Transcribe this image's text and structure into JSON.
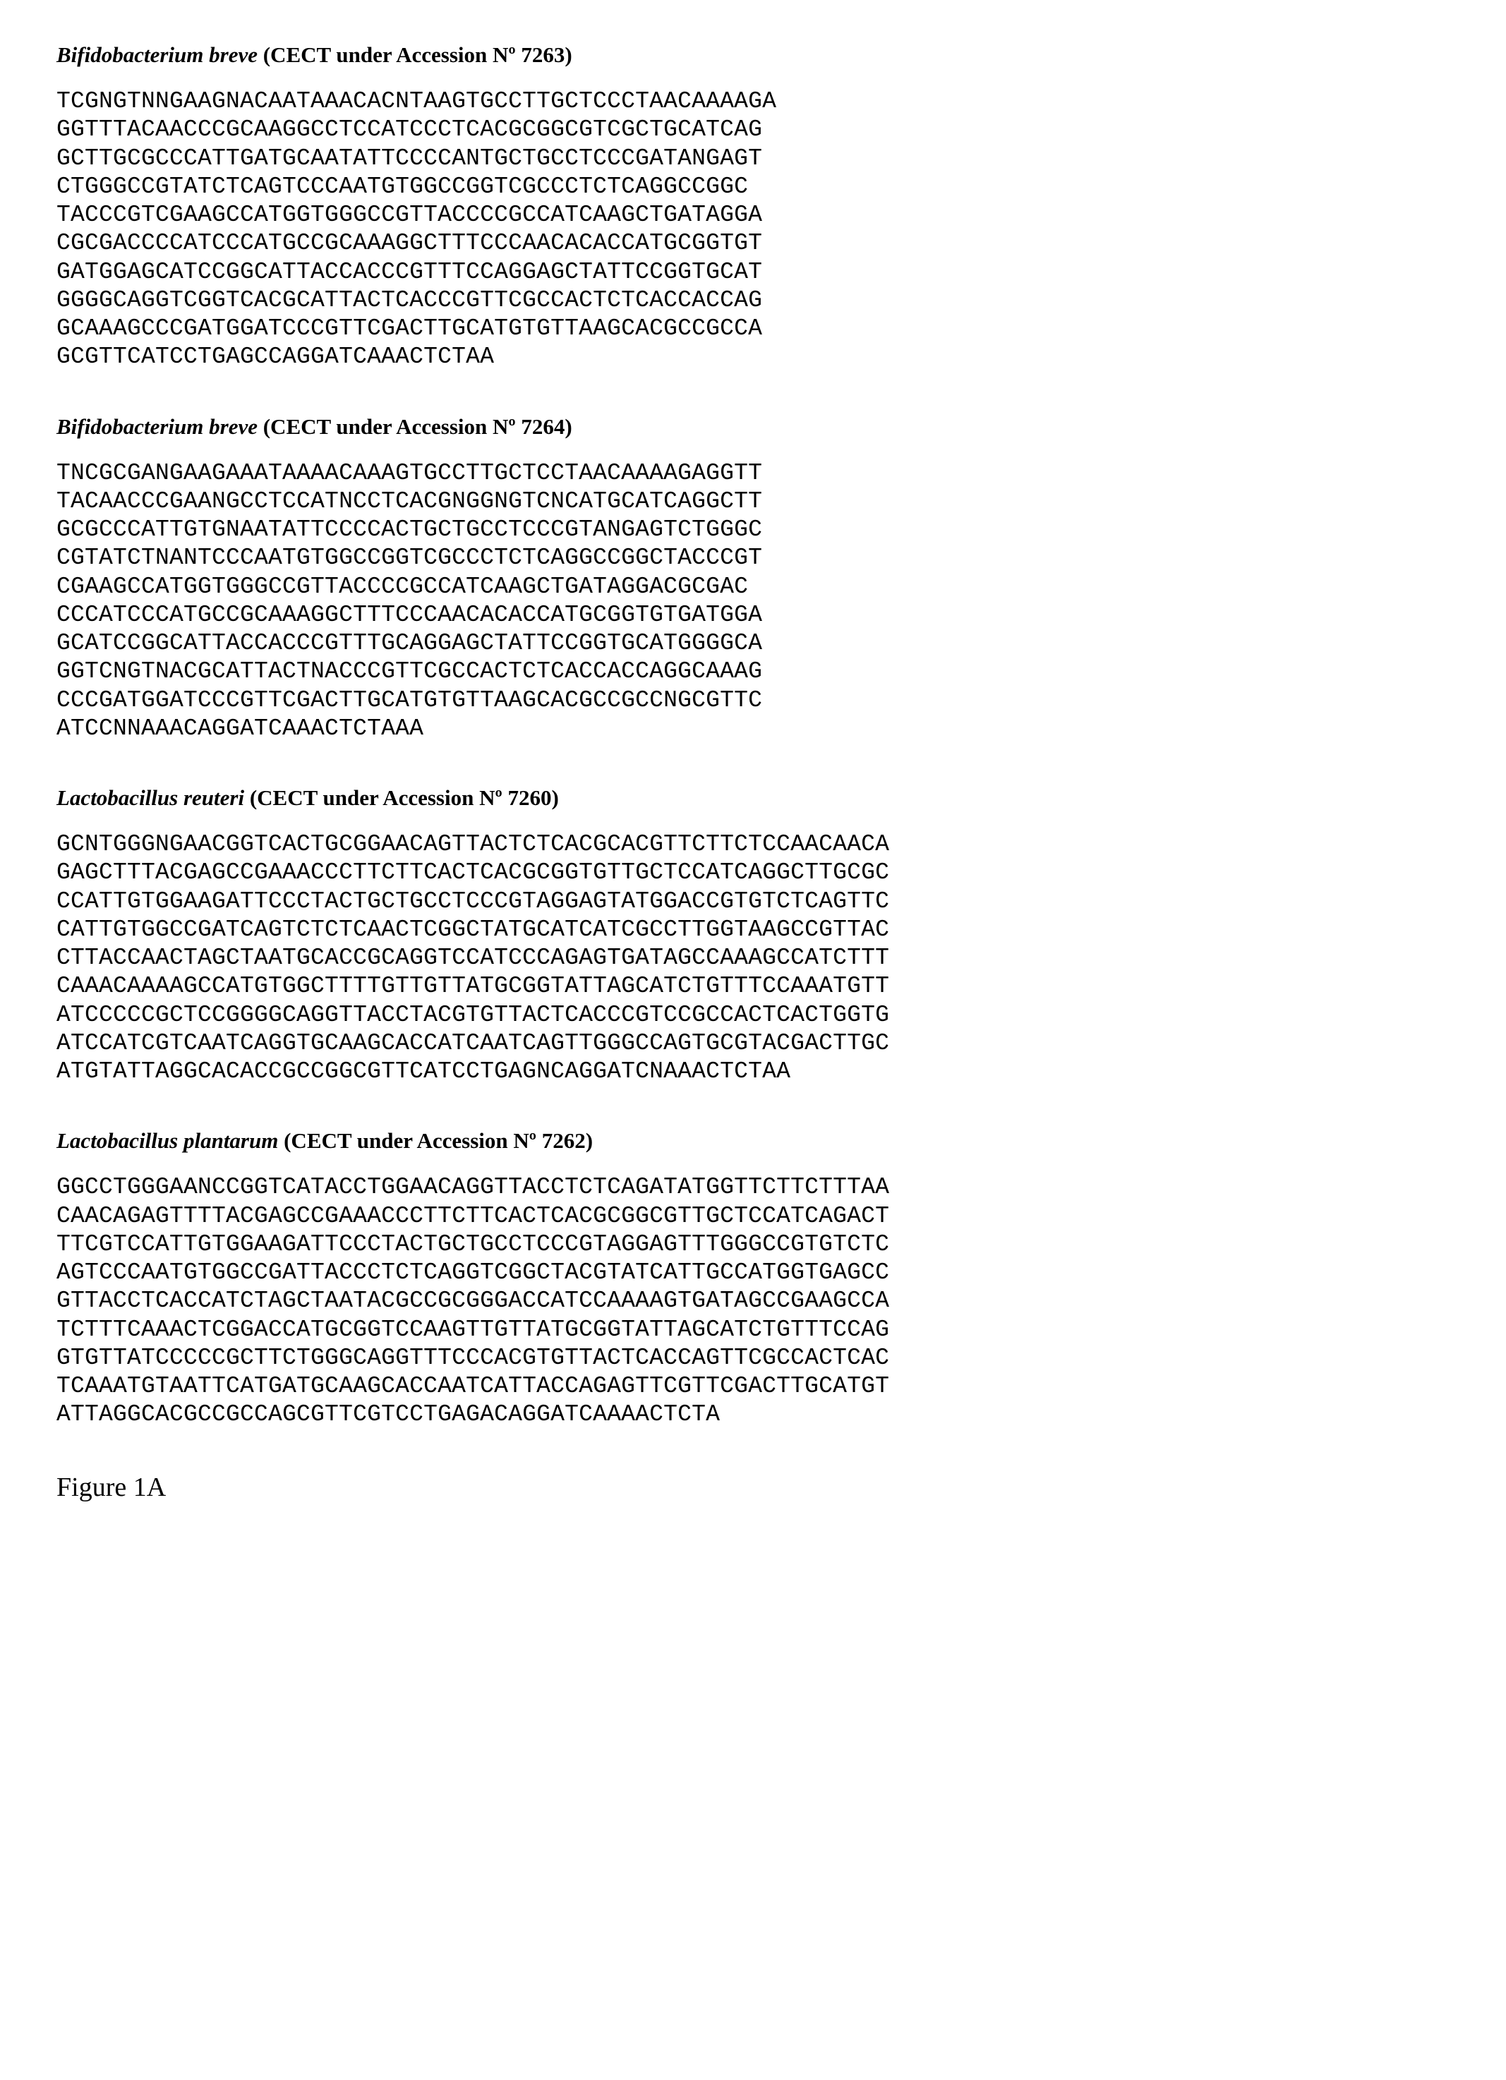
{
  "sections": [
    {
      "title_italic": "Bifidobacterium breve",
      "title_rest": " (CECT under Accession Nº 7263)",
      "sequence": "TCGNGTNNGAAGNACAATAAACACNTAAGTGCCTTGCTCCCTAACAAAAGA\nGGTTTACAACCCGCAAGGCCTCCATCCCTCACGCGGCGTCGCTGCATCAG\nGCTTGCGCCCATTGATGCAATATTCCCCANTGCTGCCTCCCGATANGAGT\nCTGGGCCGTATCTCAGTCCCAATGTGGCCGGTCGCCCTCTCAGGCCGGC\nTACCCGTCGAAGCCATGGTGGGCCGTTACCCCGCCATCAAGCTGATAGGA\nCGCGACCCCATCCCATGCCGCAAAGGCTTTCCCAACACACCATGCGGTGT\nGATGGAGCATCCGGCATTACCACCCGTTTCCAGGAGCTATTCCGGTGCAT\nGGGGCAGGTCGGTCACGCATTACTCACCCGTTCGCCACTCTCACCACCAG\nGCAAAGCCCGATGGATCCCGTTCGACTTGCATGTGTTAAGCACGCCGCCA\nGCGTTCATCCTGAGCCAGGATCAAACTCTAA"
    },
    {
      "title_italic": "Bifidobacterium breve",
      "title_rest": " (CECT under Accession Nº 7264)",
      "sequence": "TNCGCGANGAAGAAATAAAACAAAGTGCCTTGCTCCTAACAAAAGAGGTT\nTACAACCCGAANGCCTCCATNCCTCACGNGGNGTCNCATGCATCAGGCTT\nGCGCCCATTGTGNAATATTCCCCACTGCTGCCTCCCGTANGAGTCTGGGC\nCGTATCTNANTCCCAATGTGGCCGGTCGCCCTCTCAGGCCGGCTACCCGT\nCGAAGCCATGGTGGGCCGTTACCCCGCCATCAAGCTGATAGGACGCGAC\nCCCATCCCATGCCGCAAAGGCTTTCCCAACACACCATGCGGTGTGATGGA\nGCATCCGGCATTACCACCCGTTTGCAGGAGCTATTCCGGTGCATGGGGCA\nGGTCNGTNACGCATTACTNACCCGTTCGCCACTCTCACCACCAGGCAAAG\nCCCGATGGATCCCGTTCGACTTGCATGTGTTAAGCACGCCGCCNGCGTTC\nATCCNNAAACAGGATCAAACTCTAAA"
    },
    {
      "title_italic": "Lactobacillus reuteri",
      "title_rest": " (CECT under Accession Nº 7260)",
      "sequence": "GCNTGGGNGAACGGTCACTGCGGAACAGTTACTCTCACGCACGTTCTTCTCCAACAACA\nGAGCTTTACGAGCCGAAACCCTTCTTCACTCACGCGGTGTTGCTCCATCAGGCTTGCGC\nCCATTGTGGAAGATTCCCTACTGCTGCCTCCCGTAGGAGTATGGACCGTGTCTCAGTTC\nCATTGTGGCCGATCAGTCTCTCAACTCGGCTATGCATCATCGCCTTGGTAAGCCGTTAC\nCTTACCAACTAGCTAATGCACCGCAGGTCCATCCCAGAGTGATAGCCAAAGCCATCTTT\nCAAACAAAAGCCATGTGGCTTTTGTTGTTATGCGGTATTAGCATCTGTTTCCAAATGTT\nATCCCCCGCTCCGGGGCAGGTTACCTACGTGTTACTCACCCGTCCGCCACTCACTGGTG\nATCCATCGTCAATCAGGTGCAAGCACCATCAATCAGTTGGGCCAGTGCGTACGACTTGC\nATGTATTAGGCACACCGCCGGCGTTCATCCTGAGNCAGGATCNAAACTCTAA"
    },
    {
      "title_italic": "Lactobacillus plantarum",
      "title_rest": " (CECT under Accession Nº 7262)",
      "sequence": "GGCCTGGGAANCCGGTCATACCTGGAACAGGTTACCTCTCAGATATGGTTCTTCTTTAA\nCAACAGAGTTTTACGAGCCGAAACCCTTCTTCACTCACGCGGCGTTGCTCCATCAGACT\nTTCGTCCATTGTGGAAGATTCCCTACTGCTGCCTCCCGTAGGAGTTTGGGCCGTGTCTC\nAGTCCCAATGTGGCCGATTACCCTCTCAGGTCGGCTACGTATCATTGCCATGGTGAGCC\nGTTACCTCACCATCTAGCTAATACGCCGCGGGACCATCCAAAAGTGATAGCCGAAGCCA\nTCTTTCAAACTCGGACCATGCGGTCCAAGTTGTTATGCGGTATTAGCATCTGTTTCCAG\nGTGTTATCCCCCGCTTCTGGGCAGGTTTCCCACGTGTTACTCACCAGTTCGCCACTCAC\nTCAAATGTAATTCATGATGCAAGCACCAATCATTACCAGAGTTCGTTCGACTTGCATGT\nATTAGGCACGCCGCCAGCGTTCGTCCTGAGACAGGATCAAAACTCTA"
    }
  ],
  "figure_label": "Figure 1A"
}
